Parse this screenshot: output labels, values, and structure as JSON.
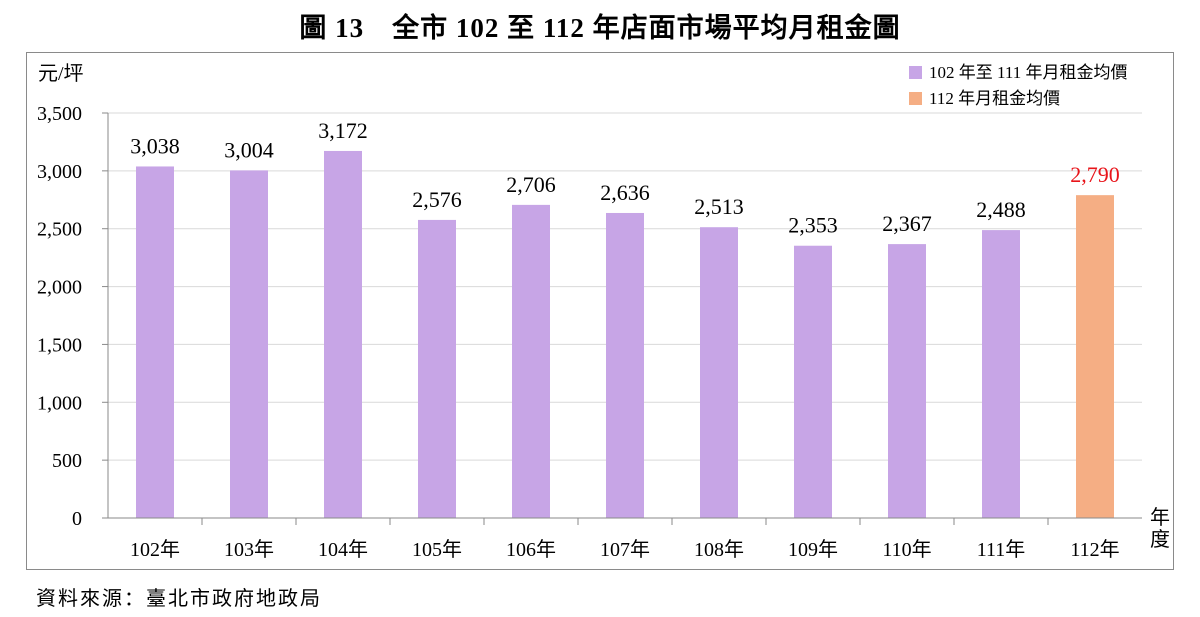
{
  "title": "圖 13　全市 102 至 112 年店面市場平均月租金圖",
  "source": "資料來源：臺北市政府地政局",
  "colors": {
    "series_past": "#c7a5e6",
    "series_current": "#f5ae84",
    "current_label": "#e8141a",
    "gridline": "#d9d9d9",
    "axis": "#8a8a8a"
  },
  "chart_data": {
    "type": "bar",
    "title": "圖 13　全市 102 至 112 年店面市場平均月租金圖",
    "ylabel": "元/坪",
    "xlabel": "年度",
    "ylim": [
      0,
      3500
    ],
    "ytick_step": 500,
    "grid": true,
    "legend_position": "top-right",
    "categories": [
      "102年",
      "103年",
      "104年",
      "105年",
      "106年",
      "107年",
      "108年",
      "109年",
      "110年",
      "111年",
      "112年"
    ],
    "values": [
      3038,
      3004,
      3172,
      2576,
      2706,
      2636,
      2513,
      2353,
      2367,
      2488,
      2790
    ],
    "value_labels": [
      "3,038",
      "3,004",
      "3,172",
      "2,576",
      "2,706",
      "2,636",
      "2,513",
      "2,353",
      "2,367",
      "2,488",
      "2,790"
    ],
    "series_index": [
      0,
      0,
      0,
      0,
      0,
      0,
      0,
      0,
      0,
      0,
      1
    ],
    "legend": [
      {
        "name": "102 年至 111 年月租金均價",
        "color": "#c7a5e6"
      },
      {
        "name": "112 年月租金均價",
        "color": "#f5ae84"
      }
    ]
  }
}
